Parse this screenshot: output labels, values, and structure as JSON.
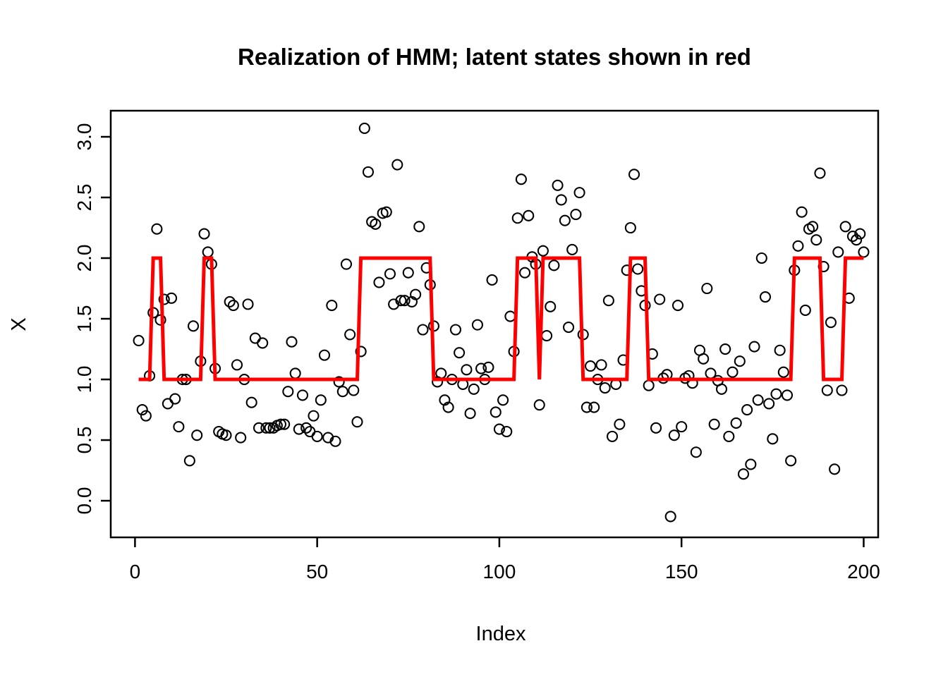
{
  "title": "Realization of HMM; latent states shown in red",
  "x_axis": {
    "label": "Index",
    "tick_labels": [
      "0",
      "50",
      "100",
      "150",
      "200"
    ],
    "tick_values": [
      0,
      50,
      100,
      150,
      200
    ]
  },
  "y_axis": {
    "label": "X",
    "tick_labels": [
      "0.0",
      "0.5",
      "1.0",
      "1.5",
      "2.0",
      "2.5",
      "3.0"
    ],
    "tick_values": [
      0.0,
      0.5,
      1.0,
      1.5,
      2.0,
      2.5,
      3.0
    ]
  },
  "colors": {
    "latent_line": "#ff0000",
    "points": "#000000",
    "frame": "#000000",
    "background": "#ffffff"
  },
  "chart_data": {
    "type": "scatter",
    "title": "Realization of HMM; latent states shown in red",
    "xlabel": "Index",
    "ylabel": "X",
    "xlim": [
      -6.66,
      203.98
    ],
    "ylim": [
      -0.302,
      3.215
    ],
    "grid": false,
    "legend": "none",
    "x_description": "Index t = 1..200 for both series",
    "series": [
      {
        "name": "observations",
        "type": "scatter",
        "marker": "open-circle",
        "y": [
          1.32,
          0.75,
          0.7,
          1.03,
          1.55,
          2.24,
          1.49,
          1.66,
          0.8,
          1.67,
          0.84,
          0.61,
          1.0,
          1.0,
          0.33,
          1.44,
          0.54,
          1.15,
          2.2,
          2.05,
          1.95,
          1.09,
          0.57,
          0.55,
          0.54,
          1.64,
          1.61,
          1.12,
          0.52,
          1.0,
          1.62,
          0.81,
          1.34,
          0.6,
          1.3,
          0.6,
          0.6,
          0.6,
          0.62,
          0.63,
          0.63,
          0.9,
          1.31,
          1.05,
          0.59,
          0.87,
          0.6,
          0.57,
          0.7,
          0.53,
          0.83,
          1.2,
          0.52,
          1.61,
          0.49,
          0.98,
          0.9,
          1.95,
          1.37,
          0.91,
          0.65,
          1.23,
          3.07,
          2.71,
          2.3,
          2.28,
          1.8,
          2.37,
          2.38,
          1.87,
          1.62,
          2.77,
          1.65,
          1.65,
          1.88,
          1.64,
          1.7,
          2.26,
          1.41,
          1.92,
          1.78,
          1.44,
          0.98,
          1.05,
          0.83,
          0.77,
          1.0,
          1.41,
          1.22,
          0.96,
          1.08,
          0.72,
          0.92,
          1.45,
          1.09,
          1.0,
          1.1,
          1.82,
          0.73,
          0.59,
          0.83,
          0.57,
          1.52,
          1.23,
          2.33,
          2.65,
          1.88,
          2.35,
          2.01,
          1.95,
          0.79,
          2.06,
          1.36,
          1.6,
          1.94,
          2.6,
          2.48,
          2.31,
          1.43,
          2.07,
          2.36,
          2.54,
          1.37,
          0.77,
          1.11,
          0.77,
          1.0,
          1.12,
          0.93,
          1.65,
          0.53,
          0.96,
          0.63,
          1.16,
          1.9,
          2.25,
          2.69,
          1.91,
          1.73,
          1.61,
          0.95,
          1.21,
          0.6,
          1.66,
          1.01,
          1.04,
          -0.13,
          0.54,
          1.61,
          0.61,
          1.01,
          1.03,
          0.97,
          0.4,
          1.24,
          1.17,
          1.75,
          1.05,
          0.63,
          0.99,
          0.92,
          1.25,
          0.53,
          1.06,
          0.64,
          1.15,
          0.22,
          0.75,
          0.3,
          1.27,
          0.83,
          2.0,
          1.68,
          0.8,
          0.51,
          0.88,
          1.24,
          1.06,
          0.87,
          0.33,
          1.9,
          2.1,
          2.38,
          1.57,
          2.24,
          2.26,
          2.15,
          2.7,
          1.93,
          0.91,
          1.47,
          0.26,
          2.05,
          0.91,
          2.26,
          1.67,
          2.18,
          2.15,
          2.2,
          2.05
        ]
      },
      {
        "name": "latent states",
        "type": "line",
        "color": "#ff0000",
        "y": [
          1,
          1,
          1,
          1,
          2,
          2,
          2,
          1,
          1,
          1,
          1,
          1,
          1,
          1,
          1,
          1,
          1,
          1,
          2,
          2,
          2,
          1,
          1,
          1,
          1,
          1,
          1,
          1,
          1,
          1,
          1,
          1,
          1,
          1,
          1,
          1,
          1,
          1,
          1,
          1,
          1,
          1,
          1,
          1,
          1,
          1,
          1,
          1,
          1,
          1,
          1,
          1,
          1,
          1,
          1,
          1,
          1,
          1,
          1,
          1,
          1,
          2,
          2,
          2,
          2,
          2,
          2,
          2,
          2,
          2,
          2,
          2,
          2,
          2,
          2,
          2,
          2,
          2,
          2,
          2,
          2,
          1,
          1,
          1,
          1,
          1,
          1,
          1,
          1,
          1,
          1,
          1,
          1,
          1,
          1,
          1,
          1,
          1,
          1,
          1,
          1,
          1,
          1,
          1,
          2,
          2,
          2,
          2,
          2,
          2,
          1,
          2,
          2,
          2,
          2,
          2,
          2,
          2,
          2,
          2,
          2,
          2,
          1,
          1,
          1,
          1,
          1,
          1,
          1,
          1,
          1,
          1,
          1,
          1,
          1,
          2,
          2,
          2,
          2,
          2,
          1,
          1,
          1,
          1,
          1,
          1,
          1,
          1,
          1,
          1,
          1,
          1,
          1,
          1,
          1,
          1,
          1,
          1,
          1,
          1,
          1,
          1,
          1,
          1,
          1,
          1,
          1,
          1,
          1,
          1,
          1,
          1,
          1,
          1,
          1,
          1,
          1,
          1,
          1,
          1,
          2,
          2,
          2,
          2,
          2,
          2,
          2,
          2,
          1,
          1,
          1,
          1,
          1,
          1,
          2,
          2,
          2,
          2,
          2,
          2
        ]
      }
    ]
  }
}
